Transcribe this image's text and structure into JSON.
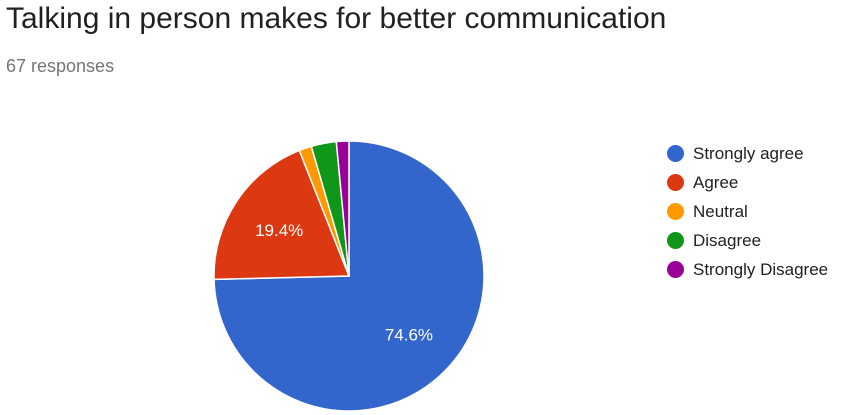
{
  "header": {
    "title": "Talking in person makes for better communication",
    "subtitle": "67 responses"
  },
  "chart_data": {
    "type": "pie",
    "title": "Talking in person makes for better communication",
    "subtitle": "67 responses",
    "slices": [
      {
        "label": "Strongly agree",
        "value": 74.6,
        "color": "#3366cc",
        "data_label": "74.6%"
      },
      {
        "label": "Agree",
        "value": 19.4,
        "color": "#dc3912",
        "data_label": "19.4%"
      },
      {
        "label": "Neutral",
        "value": 1.5,
        "color": "#ff9900",
        "data_label": ""
      },
      {
        "label": "Disagree",
        "value": 3.0,
        "color": "#109618",
        "data_label": ""
      },
      {
        "label": "Strongly Disagree",
        "value": 1.5,
        "color": "#990099",
        "data_label": ""
      }
    ],
    "legend_position": "right"
  }
}
